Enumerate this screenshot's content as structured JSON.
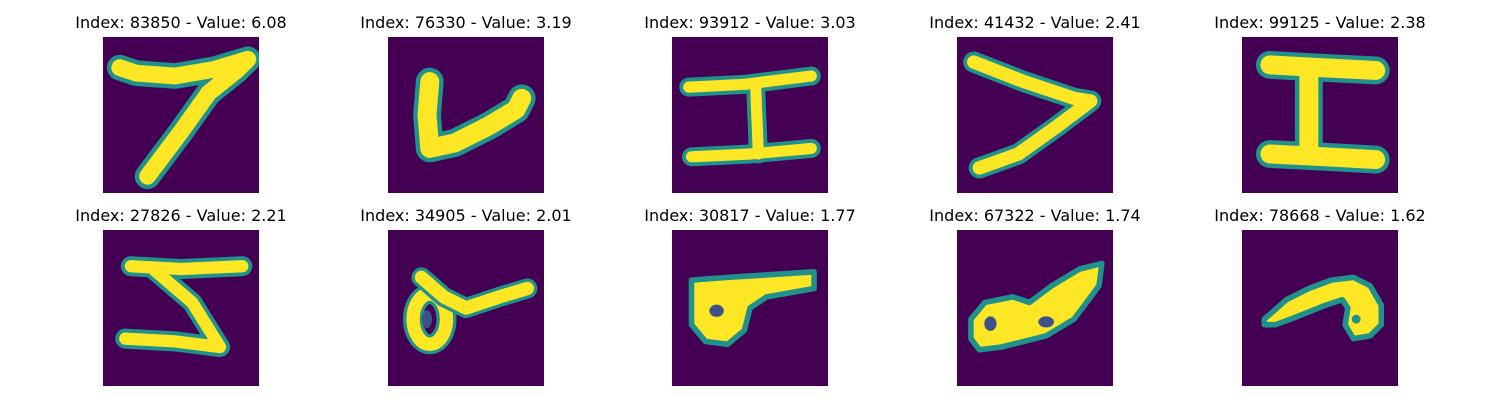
{
  "colors": {
    "background": "#440154",
    "stroke": "#fde725",
    "edge_mid": "#21918c",
    "edge_dark": "#3b528b"
  },
  "grid": [
    {
      "title": "Index: 83850 - Value: 6.08",
      "glyph": "seven"
    },
    {
      "title": "Index: 76330 - Value: 3.19",
      "glyph": "v-check"
    },
    {
      "title": "Index: 93912 - Value: 3.03",
      "glyph": "i-beam-thin"
    },
    {
      "title": "Index: 41432 - Value: 2.41",
      "glyph": "angle-bracket"
    },
    {
      "title": "Index: 99125 - Value: 2.38",
      "glyph": "i-beam-thick"
    },
    {
      "title": "Index: 27826 - Value: 2.21",
      "glyph": "z-shape"
    },
    {
      "title": "Index: 34905 - Value: 2.01",
      "glyph": "loop-stroke"
    },
    {
      "title": "Index: 30817 - Value: 1.77",
      "glyph": "blob-line"
    },
    {
      "title": "Index: 67322 - Value: 1.74",
      "glyph": "double-loop"
    },
    {
      "title": "Index: 78668 - Value: 1.62",
      "glyph": "curl"
    }
  ]
}
